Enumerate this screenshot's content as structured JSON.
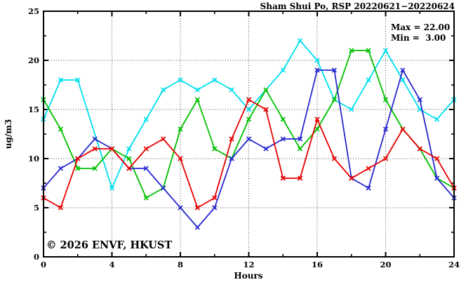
{
  "header": {
    "title": "Sham Shui Po, RSP 20220621−20220624"
  },
  "stats": {
    "max_line": "Max = 22.00",
    "min_line": "Min =  3.00"
  },
  "watermark": {
    "text": "© 2026 ENVF, HKUST",
    "color": "#d9d9d9"
  },
  "chart_data": {
    "type": "line",
    "title": "Sham Shui Po, RSP 20220621−20220624",
    "xlabel": "Hours",
    "ylabel": "ug/m3",
    "xlim": [
      0,
      24
    ],
    "ylim": [
      0,
      25
    ],
    "x_major_ticks": [
      0,
      4,
      8,
      12,
      16,
      20,
      24
    ],
    "x_minor_step": 2,
    "y_major_ticks": [
      0,
      5,
      10,
      15,
      20,
      25
    ],
    "y_minor_step": 2.5,
    "grid": true,
    "grid_x_lines": [
      4,
      8,
      12,
      16,
      20
    ],
    "grid_y_lines": [
      5,
      10,
      15,
      20
    ],
    "legend_position": "none",
    "x": [
      0,
      1,
      2,
      3,
      4,
      5,
      6,
      7,
      8,
      9,
      10,
      11,
      12,
      13,
      14,
      15,
      16,
      17,
      18,
      19,
      20,
      21,
      22,
      23,
      24
    ],
    "series": [
      {
        "name": "cyan",
        "color": "#00e0ee",
        "values": [
          14,
          18,
          18,
          null,
          7,
          11,
          14,
          17,
          18,
          17,
          18,
          17,
          15,
          17,
          19,
          22,
          20,
          16,
          15,
          18,
          21,
          18,
          15,
          14,
          16
        ]
      },
      {
        "name": "green",
        "color": "#00c000",
        "values": [
          16,
          13,
          9,
          9,
          11,
          10,
          6,
          7,
          13,
          16,
          11,
          10,
          14,
          17,
          14,
          11,
          13,
          16,
          21,
          21,
          16,
          13,
          11,
          8,
          7
        ]
      },
      {
        "name": "blue",
        "color": "#2828d0",
        "values": [
          7,
          9,
          10,
          12,
          11,
          9,
          9,
          7,
          5,
          3,
          5,
          10,
          12,
          11,
          12,
          12,
          19,
          19,
          8,
          7,
          13,
          19,
          16,
          8,
          6
        ]
      },
      {
        "name": "red",
        "color": "#e80000",
        "values": [
          6,
          5,
          10,
          11,
          11,
          9,
          11,
          12,
          10,
          5,
          6,
          12,
          16,
          15,
          8,
          8,
          14,
          10,
          8,
          9,
          10,
          13,
          11,
          10,
          7
        ]
      }
    ],
    "stats_annotation": {
      "max": 22.0,
      "min": 3.0
    }
  }
}
